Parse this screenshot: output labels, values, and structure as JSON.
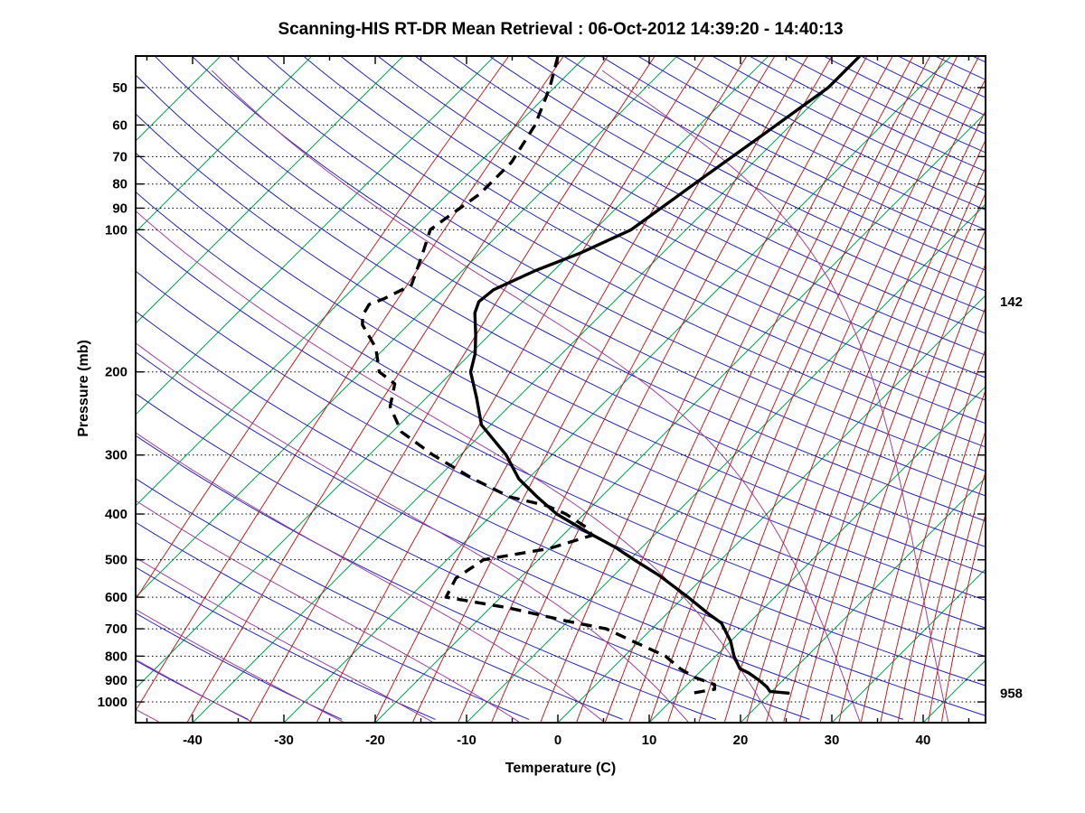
{
  "chart_data": {
    "type": "line",
    "subtype": "skewT-logP-sounding",
    "title": "Scanning-HIS RT-DR Mean Retrieval : 06-Oct-2012 14:39:20 - 14:40:13",
    "xlabel": "Temperature (C)",
    "ylabel": "Pressure (mb)",
    "x_tick_labels": [
      -40,
      -30,
      -20,
      -10,
      0,
      10,
      20,
      30,
      40
    ],
    "x_minor_tick_step": 5,
    "xlim": [
      -46.5,
      46.8
    ],
    "pressure_gridlines": [
      50,
      60,
      70,
      80,
      90,
      100,
      200,
      300,
      400,
      500,
      600,
      700,
      800,
      900,
      1000
    ],
    "plim": [
      42.8,
      1106
    ],
    "skew_isotherm_angle_deg": 45,
    "grid": "dotted horizontal lines at labeled pressures",
    "legend_position": "none",
    "right_annotations": [
      {
        "label": "142",
        "pressure": 142
      },
      {
        "label": "958",
        "pressure": 958
      }
    ],
    "series": [
      {
        "name": "temperature",
        "line": "solid",
        "color": "#000000",
        "width": 3.4,
        "points_p_T": [
          [
            43,
            -40
          ],
          [
            50,
            -40
          ],
          [
            63,
            -42
          ],
          [
            79,
            -44
          ],
          [
            100,
            -46
          ],
          [
            112,
            -49
          ],
          [
            122,
            -52
          ],
          [
            134,
            -54.5
          ],
          [
            142,
            -54.8
          ],
          [
            150,
            -54
          ],
          [
            167,
            -51.5
          ],
          [
            183,
            -49.5
          ],
          [
            200,
            -48
          ],
          [
            227,
            -44.5
          ],
          [
            259,
            -41
          ],
          [
            300,
            -35
          ],
          [
            337,
            -31
          ],
          [
            368,
            -27
          ],
          [
            400,
            -23
          ],
          [
            438,
            -17.5
          ],
          [
            470,
            -13
          ],
          [
            500,
            -9.5
          ],
          [
            540,
            -5
          ],
          [
            600,
            0.5
          ],
          [
            650,
            4.5
          ],
          [
            681,
            7
          ],
          [
            744,
            10
          ],
          [
            800,
            12
          ],
          [
            850,
            14
          ],
          [
            869,
            15.5
          ],
          [
            900,
            17.4
          ],
          [
            930,
            19
          ],
          [
            950,
            19.8
          ],
          [
            958,
            22
          ]
        ]
      },
      {
        "name": "dew_point",
        "line": "dashed",
        "color": "#000000",
        "width": 3.4,
        "points_p_T": [
          [
            43,
            -73
          ],
          [
            50,
            -70.5
          ],
          [
            60,
            -68
          ],
          [
            72,
            -66.5
          ],
          [
            84,
            -66.5
          ],
          [
            94,
            -67.5
          ],
          [
            100,
            -68
          ],
          [
            114,
            -66
          ],
          [
            131,
            -64
          ],
          [
            140,
            -65.5
          ],
          [
            144,
            -66.5
          ],
          [
            152,
            -66
          ],
          [
            159,
            -65
          ],
          [
            178,
            -61
          ],
          [
            200,
            -58
          ],
          [
            212,
            -55
          ],
          [
            237,
            -53
          ],
          [
            268,
            -49
          ],
          [
            300,
            -43
          ],
          [
            337,
            -36
          ],
          [
            368,
            -30
          ],
          [
            384,
            -25
          ],
          [
            400,
            -22
          ],
          [
            429,
            -18
          ],
          [
            444,
            -16.8
          ],
          [
            473,
            -20
          ],
          [
            500,
            -26
          ],
          [
            547,
            -27
          ],
          [
            600,
            -26
          ],
          [
            632,
            -18
          ],
          [
            675,
            -10
          ],
          [
            700,
            -5
          ],
          [
            744,
            -0.7
          ],
          [
            778,
            2.5
          ],
          [
            800,
            4.5
          ],
          [
            849,
            7.4
          ],
          [
            887,
            10
          ],
          [
            919,
            13
          ],
          [
            940,
            13.5
          ],
          [
            958,
            11.5
          ]
        ]
      }
    ],
    "background_lines": {
      "isotherms": {
        "color": "#00a050",
        "start": -120,
        "end": 60,
        "step": 10
      },
      "dry_adiabats": {
        "color": "#2424b8",
        "start": -40,
        "end": 340,
        "step": 10
      },
      "moist_adiabats": {
        "color": "#a040a0",
        "start": -60,
        "end": 40,
        "step": 10
      },
      "mixing_ratio_g_kg": {
        "color": "#c02020",
        "values": [
          0.02,
          0.05,
          0.1,
          0.2,
          0.4,
          0.7,
          1,
          1.5,
          2,
          3,
          4,
          5,
          6,
          7,
          8,
          10,
          12,
          14,
          16,
          18,
          20,
          23,
          26,
          30,
          34,
          38,
          42,
          46,
          50
        ]
      },
      "gridline_color": "#000000"
    }
  }
}
